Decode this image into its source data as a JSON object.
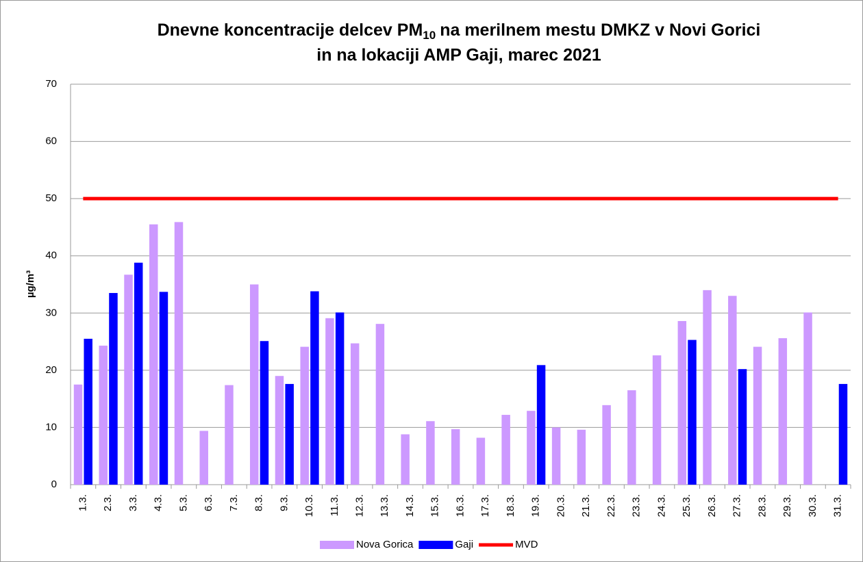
{
  "chart_data": {
    "type": "bar",
    "title": [
      "Dnevne koncentracije delcev PM",
      "10",
      "na merilnem mestu DMKZ v Novi Gorici",
      "in na lokaciji AMP Gaji, marec 2021"
    ],
    "y_label": "µg/m³",
    "categories": [
      "1.3.",
      "2.3.",
      "3.3.",
      "4.3.",
      "5.3.",
      "6.3.",
      "7.3.",
      "8.3.",
      "9.3.",
      "10.3.",
      "11.3.",
      "12.3.",
      "13.3.",
      "14.3.",
      "15.3.",
      "16.3.",
      "17.3.",
      "18.3.",
      "19.3.",
      "20.3.",
      "21.3.",
      "22.3.",
      "23.3.",
      "24.3.",
      "25.3.",
      "26.3.",
      "27.3.",
      "28.3.",
      "29.3.",
      "30.3.",
      "31.3."
    ],
    "series": [
      {
        "name": "Nova Gorica",
        "color": "#cc99ff",
        "type": "bar",
        "values": [
          17.5,
          24.3,
          36.7,
          45.5,
          45.9,
          9.4,
          17.4,
          35.0,
          19.0,
          24.1,
          29.1,
          24.7,
          28.1,
          8.8,
          11.1,
          9.7,
          8.2,
          12.2,
          12.9,
          10.0,
          9.6,
          13.9,
          16.5,
          22.6,
          28.6,
          34.0,
          33.0,
          24.1,
          25.6,
          30.1,
          null
        ]
      },
      {
        "name": "Gaji",
        "color": "#0000ff",
        "type": "bar",
        "values": [
          25.5,
          33.5,
          38.8,
          33.7,
          null,
          null,
          null,
          25.1,
          17.6,
          33.8,
          30.1,
          null,
          null,
          null,
          null,
          null,
          null,
          null,
          20.9,
          null,
          null,
          null,
          null,
          null,
          25.3,
          null,
          20.2,
          null,
          null,
          null,
          17.6
        ]
      },
      {
        "name": "MVD",
        "color": "#ff0000",
        "type": "line",
        "values": [
          50,
          50,
          50,
          50,
          50,
          50,
          50,
          50,
          50,
          50,
          50,
          50,
          50,
          50,
          50,
          50,
          50,
          50,
          50,
          50,
          50,
          50,
          50,
          50,
          50,
          50,
          50,
          50,
          50,
          50,
          50
        ]
      }
    ],
    "ylim": [
      0,
      70
    ],
    "yticks": [
      0,
      10,
      20,
      30,
      40,
      50,
      60,
      70
    ],
    "grid": true,
    "legend": "bottom"
  }
}
